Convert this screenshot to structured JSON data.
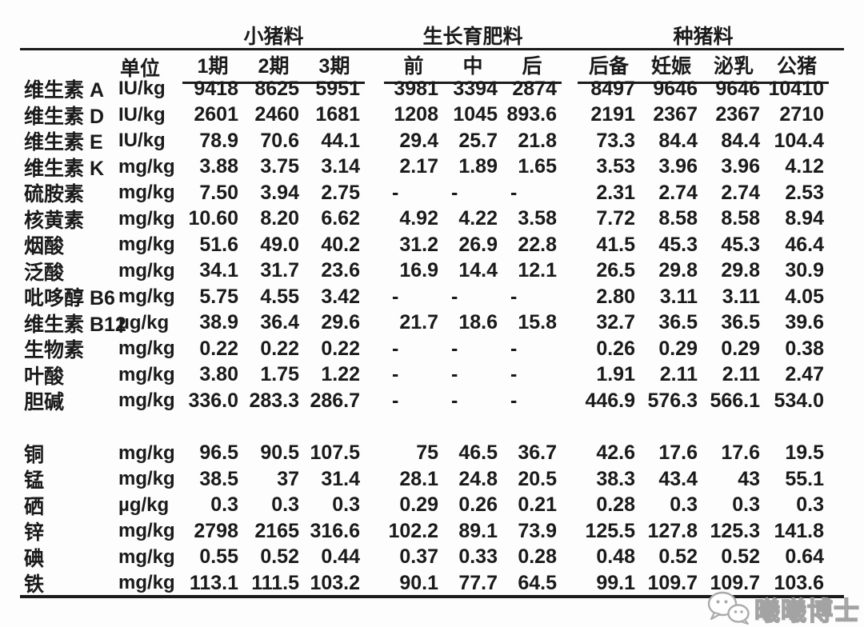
{
  "table": {
    "unit_header": "单位",
    "groups": [
      {
        "label": "小猪料",
        "cols": [
          "1期",
          "2期",
          "3期"
        ]
      },
      {
        "label": "生长育肥料",
        "cols": [
          "前",
          "中",
          "后"
        ]
      },
      {
        "label": "种猪料",
        "cols": [
          "后备",
          "妊娠",
          "泌乳",
          "公猪"
        ]
      }
    ],
    "rows": [
      {
        "name": "维生素 A",
        "unit": "IU/kg",
        "values": [
          "9418",
          "8625",
          "5951",
          "3981",
          "3394",
          "2874",
          "8497",
          "9646",
          "9646",
          "10410"
        ]
      },
      {
        "name": "维生素 D",
        "unit": "IU/kg",
        "values": [
          "2601",
          "2460",
          "1681",
          "1208",
          "1045",
          "893.6",
          "2191",
          "2367",
          "2367",
          "2710"
        ]
      },
      {
        "name": "维生素 E",
        "unit": "IU/kg",
        "values": [
          "78.9",
          "70.6",
          "44.1",
          "29.4",
          "25.7",
          "21.8",
          "73.3",
          "84.4",
          "84.4",
          "104.4"
        ]
      },
      {
        "name": "维生素 K",
        "unit": "mg/kg",
        "values": [
          "3.88",
          "3.75",
          "3.14",
          "2.17",
          "1.89",
          "1.65",
          "3.53",
          "3.96",
          "3.96",
          "4.12"
        ]
      },
      {
        "name": "硫胺素",
        "unit": "mg/kg",
        "values": [
          "7.50",
          "3.94",
          "2.75",
          "-",
          "-",
          "-",
          "2.31",
          "2.74",
          "2.74",
          "2.53"
        ]
      },
      {
        "name": "核黄素",
        "unit": "mg/kg",
        "values": [
          "10.60",
          "8.20",
          "6.62",
          "4.92",
          "4.22",
          "3.58",
          "7.72",
          "8.58",
          "8.58",
          "8.94"
        ]
      },
      {
        "name": "烟酸",
        "unit": "mg/kg",
        "values": [
          "51.6",
          "49.0",
          "40.2",
          "31.2",
          "26.9",
          "22.8",
          "41.5",
          "45.3",
          "45.3",
          "46.4"
        ]
      },
      {
        "name": "泛酸",
        "unit": "mg/kg",
        "values": [
          "34.1",
          "31.7",
          "23.6",
          "16.9",
          "14.4",
          "12.1",
          "26.5",
          "29.8",
          "29.8",
          "30.9"
        ]
      },
      {
        "name": "吡哆醇 B6",
        "unit": "mg/kg",
        "values": [
          "5.75",
          "4.55",
          "3.42",
          "-",
          "-",
          "-",
          "2.80",
          "3.11",
          "3.11",
          "4.05"
        ]
      },
      {
        "name": "维生素 B12",
        "unit": "µg/kg",
        "values": [
          "38.9",
          "36.4",
          "29.6",
          "21.7",
          "18.6",
          "15.8",
          "32.7",
          "36.5",
          "36.5",
          "39.6"
        ]
      },
      {
        "name": "生物素",
        "unit": "mg/kg",
        "values": [
          "0.22",
          "0.22",
          "0.22",
          "-",
          "-",
          "-",
          "0.26",
          "0.29",
          "0.29",
          "0.38"
        ]
      },
      {
        "name": "叶酸",
        "unit": "mg/kg",
        "values": [
          "3.80",
          "1.75",
          "1.22",
          "-",
          "-",
          "-",
          "1.91",
          "2.11",
          "2.11",
          "2.47"
        ]
      },
      {
        "name": "胆碱",
        "unit": "mg/kg",
        "values": [
          "336.0",
          "283.3",
          "286.7",
          "-",
          "-",
          "-",
          "446.9",
          "576.3",
          "566.1",
          "534.0"
        ]
      },
      {
        "spacer": true
      },
      {
        "name": "铜",
        "unit": "mg/kg",
        "values": [
          "96.5",
          "90.5",
          "107.5",
          "75",
          "46.5",
          "36.7",
          "42.6",
          "17.6",
          "17.6",
          "19.5"
        ]
      },
      {
        "name": "锰",
        "unit": "mg/kg",
        "values": [
          "38.5",
          "37",
          "31.4",
          "28.1",
          "24.8",
          "20.5",
          "38.3",
          "43.4",
          "43",
          "55.1"
        ]
      },
      {
        "name": "硒",
        "unit": "µg/kg",
        "values": [
          "0.3",
          "0.3",
          "0.3",
          "0.29",
          "0.26",
          "0.21",
          "0.28",
          "0.3",
          "0.3",
          "0.3"
        ]
      },
      {
        "name": "锌",
        "unit": "mg/kg",
        "values": [
          "2798",
          "2165",
          "316.6",
          "102.2",
          "89.1",
          "73.9",
          "125.5",
          "127.8",
          "125.3",
          "141.8"
        ]
      },
      {
        "name": "碘",
        "unit": "mg/kg",
        "values": [
          "0.55",
          "0.52",
          "0.44",
          "0.37",
          "0.33",
          "0.28",
          "0.48",
          "0.52",
          "0.52",
          "0.64"
        ]
      },
      {
        "name": "铁",
        "unit": "mg/kg",
        "values": [
          "113.1",
          "111.5",
          "103.2",
          "90.1",
          "77.7",
          "64.5",
          "99.1",
          "109.7",
          "109.7",
          "103.6"
        ]
      }
    ]
  },
  "watermark": {
    "text": "曦曦博士",
    "icon": "wechat-icon",
    "color": "#a3a3a3"
  }
}
